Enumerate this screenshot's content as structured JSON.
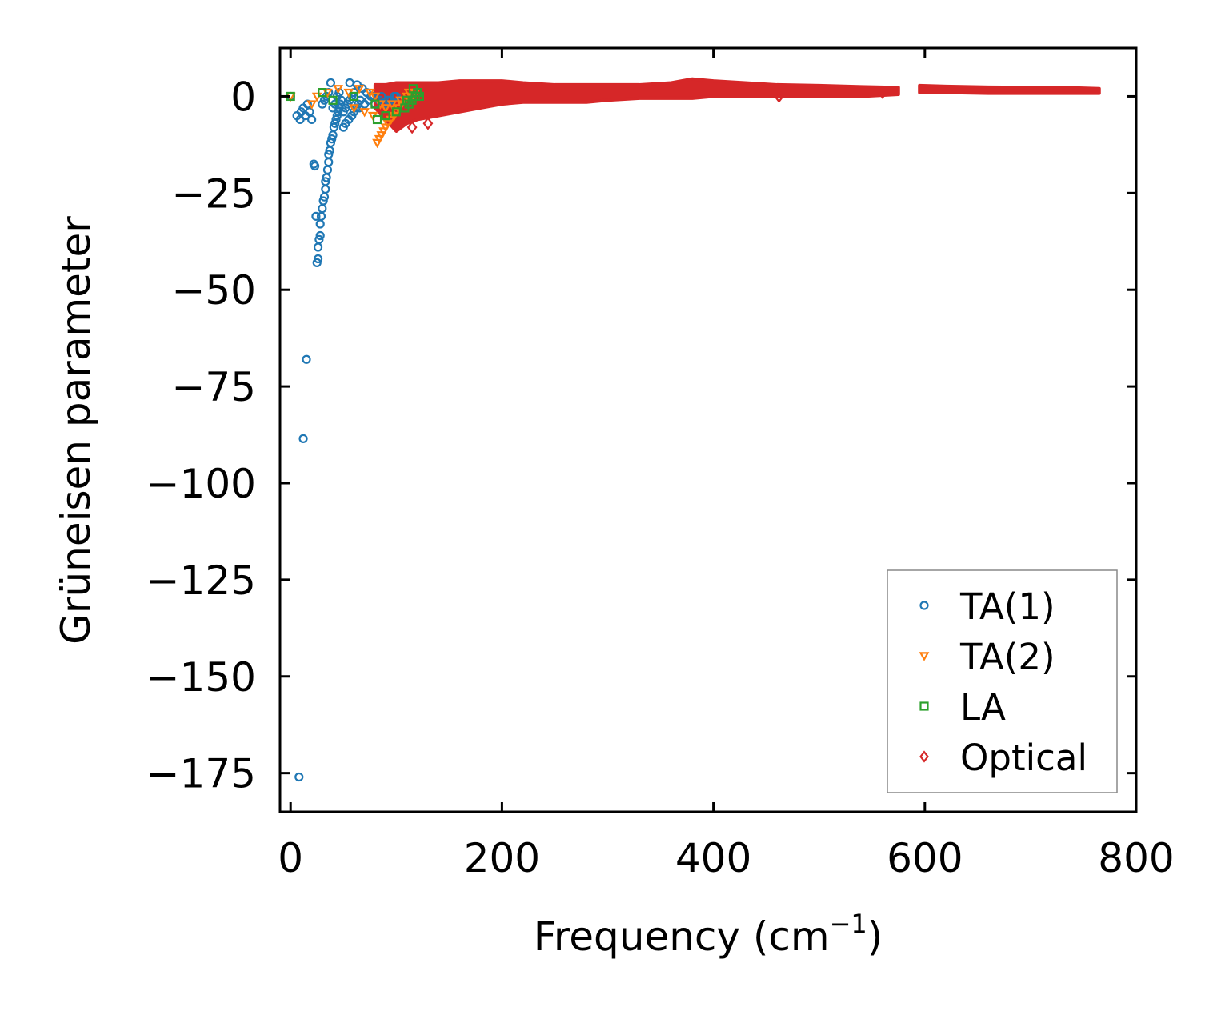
{
  "chart_data": {
    "type": "scatter",
    "xlabel": "Frequency (cm",
    "xlabel_sup": "−1",
    "xlabel_end": ")",
    "ylabel": "Grüneisen parameter",
    "xlim": [
      -10,
      800
    ],
    "ylim": [
      -185,
      12.5
    ],
    "xticks": [
      0,
      200,
      400,
      600,
      800
    ],
    "xtick_labels": [
      "0",
      "200",
      "400",
      "600",
      "800"
    ],
    "yticks": [
      0,
      -25,
      -50,
      -75,
      -100,
      -125,
      -150,
      -175
    ],
    "ytick_labels": [
      "0",
      "−25",
      "−50",
      "−75",
      "−100",
      "−125",
      "−150",
      "−175"
    ],
    "grid": false,
    "legend_position": "lower-right",
    "series": [
      {
        "name": "TA(1)",
        "marker": "circle",
        "color": "#1f77b4",
        "points": [
          [
            0,
            0
          ],
          [
            8,
            -176
          ],
          [
            12,
            -88.5
          ],
          [
            15,
            -68
          ],
          [
            6,
            -5
          ],
          [
            10,
            -4
          ],
          [
            9,
            -6
          ],
          [
            12,
            -3
          ],
          [
            14,
            -5
          ],
          [
            16,
            -2
          ],
          [
            18,
            -4
          ],
          [
            20,
            -6
          ],
          [
            22,
            -17.5
          ],
          [
            23,
            -18
          ],
          [
            24,
            -31
          ],
          [
            25,
            -43
          ],
          [
            26,
            -42
          ],
          [
            26,
            -39
          ],
          [
            27,
            -37
          ],
          [
            28,
            -36
          ],
          [
            28,
            -33
          ],
          [
            29,
            -31
          ],
          [
            30,
            -29
          ],
          [
            31,
            -27
          ],
          [
            32,
            -26
          ],
          [
            33,
            -24
          ],
          [
            33,
            -22
          ],
          [
            34,
            -21
          ],
          [
            35,
            -19
          ],
          [
            36,
            -17
          ],
          [
            36,
            -15
          ],
          [
            37,
            -14
          ],
          [
            38,
            -12
          ],
          [
            39,
            -11
          ],
          [
            40,
            -10
          ],
          [
            41,
            -8
          ],
          [
            42,
            -7
          ],
          [
            43,
            -6
          ],
          [
            44,
            -5
          ],
          [
            45,
            -4
          ],
          [
            46,
            -3
          ],
          [
            47,
            -2
          ],
          [
            48,
            -1
          ],
          [
            38,
            3.5
          ],
          [
            56,
            3.5
          ],
          [
            63,
            3
          ],
          [
            68,
            2
          ],
          [
            72,
            1
          ],
          [
            78,
            0
          ],
          [
            84,
            -1
          ],
          [
            90,
            -2
          ],
          [
            95,
            -1
          ],
          [
            98,
            0
          ],
          [
            30,
            -2
          ],
          [
            32,
            -1
          ],
          [
            34,
            0
          ],
          [
            36,
            1
          ],
          [
            40,
            -3
          ],
          [
            42,
            -2
          ],
          [
            44,
            0
          ],
          [
            46,
            1
          ],
          [
            50,
            -4
          ],
          [
            52,
            -3
          ],
          [
            54,
            -2
          ],
          [
            56,
            -1
          ],
          [
            58,
            0
          ],
          [
            60,
            1
          ],
          [
            62,
            -3
          ],
          [
            64,
            -2
          ],
          [
            66,
            -1
          ],
          [
            70,
            -2
          ],
          [
            74,
            -1
          ],
          [
            76,
            0
          ],
          [
            80,
            -2
          ],
          [
            86,
            0
          ],
          [
            92,
            -1
          ],
          [
            100,
            0
          ],
          [
            50,
            -8
          ],
          [
            52,
            -7
          ],
          [
            55,
            -6
          ],
          [
            58,
            -5
          ],
          [
            60,
            -4
          ],
          [
            65,
            -3
          ]
        ]
      },
      {
        "name": "TA(2)",
        "marker": "triangle-down",
        "color": "#ff7f0e",
        "points": [
          [
            0,
            0
          ],
          [
            20,
            -2
          ],
          [
            25,
            0
          ],
          [
            35,
            1
          ],
          [
            45,
            2
          ],
          [
            55,
            1
          ],
          [
            65,
            2
          ],
          [
            75,
            1
          ],
          [
            80,
            0
          ],
          [
            85,
            -2
          ],
          [
            82,
            -12
          ],
          [
            84,
            -11
          ],
          [
            86,
            -10
          ],
          [
            88,
            -9
          ],
          [
            90,
            -8
          ],
          [
            92,
            -7
          ],
          [
            95,
            -6
          ],
          [
            98,
            -5
          ],
          [
            100,
            -4
          ],
          [
            102,
            -3
          ],
          [
            105,
            -2
          ],
          [
            108,
            -1
          ],
          [
            110,
            0
          ],
          [
            112,
            1
          ],
          [
            60,
            -3
          ],
          [
            70,
            -4
          ],
          [
            78,
            -5
          ],
          [
            90,
            -3
          ],
          [
            96,
            -2
          ],
          [
            104,
            -1
          ],
          [
            115,
            0
          ],
          [
            118,
            1
          ]
        ]
      },
      {
        "name": "LA",
        "marker": "square",
        "color": "#2ca02c",
        "points": [
          [
            0,
            0
          ],
          [
            30,
            1
          ],
          [
            40,
            -1
          ],
          [
            60,
            0
          ],
          [
            80,
            -2
          ],
          [
            82,
            -6
          ],
          [
            90,
            -5
          ],
          [
            100,
            -4
          ],
          [
            108,
            -3
          ],
          [
            112,
            -2
          ],
          [
            115,
            -1
          ],
          [
            118,
            0
          ],
          [
            120,
            1
          ],
          [
            122,
            0
          ],
          [
            116,
            2
          ],
          [
            110,
            -1
          ]
        ]
      },
      {
        "name": "Optical",
        "marker": "diamond",
        "color": "#d62728",
        "band": [
          [
            80,
            -3,
            3
          ],
          [
            90,
            -6,
            3
          ],
          [
            100,
            -9,
            3.5
          ],
          [
            110,
            -7,
            3.5
          ],
          [
            120,
            -6,
            3.5
          ],
          [
            140,
            -5,
            3.5
          ],
          [
            160,
            -4,
            4
          ],
          [
            180,
            -3,
            4
          ],
          [
            200,
            -2,
            4
          ],
          [
            220,
            -1.5,
            3.5
          ],
          [
            250,
            -1.5,
            3
          ],
          [
            280,
            -1.5,
            3
          ],
          [
            300,
            -1,
            3
          ],
          [
            330,
            -0.5,
            3
          ],
          [
            360,
            -0.5,
            3.5
          ],
          [
            380,
            -0.5,
            4.5
          ],
          [
            400,
            0,
            4
          ],
          [
            430,
            0,
            3.5
          ],
          [
            460,
            0,
            3
          ],
          [
            500,
            0,
            2.8
          ],
          [
            540,
            0,
            2.5
          ],
          [
            575,
            0.5,
            2.3
          ]
        ],
        "band2": [
          [
            595,
            1,
            2.8
          ],
          [
            620,
            1,
            2.6
          ],
          [
            660,
            0.8,
            2.4
          ],
          [
            700,
            0.8,
            2.3
          ],
          [
            740,
            0.8,
            2.2
          ],
          [
            765,
            0.8,
            2
          ]
        ]
      }
    ]
  }
}
